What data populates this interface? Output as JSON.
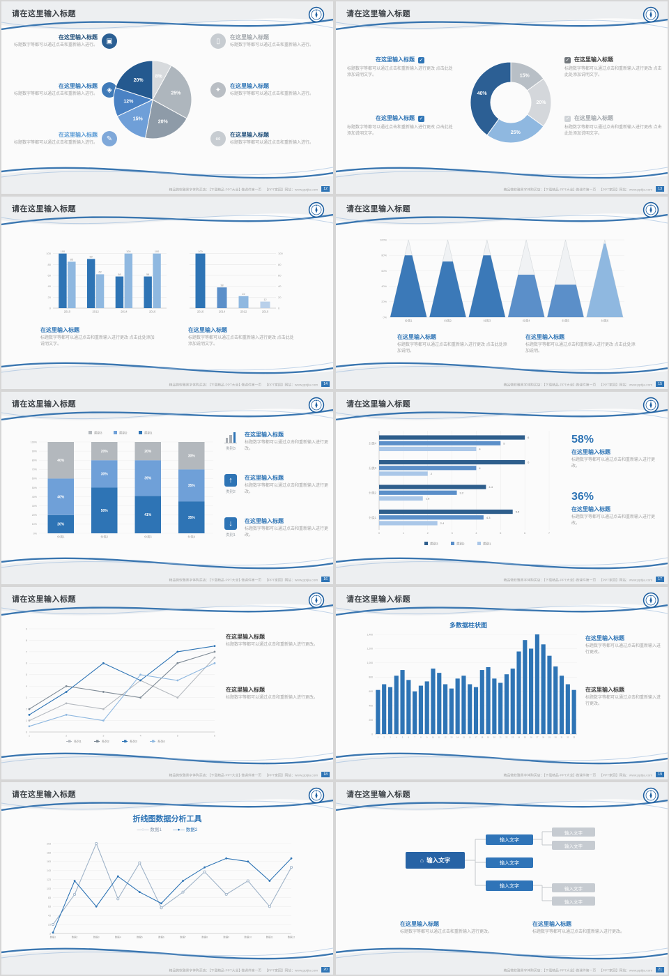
{
  "texts": {
    "title": "请在这里输入标题",
    "subtitle": "在这里输入标题",
    "body1": "标题数字等都可以通过点击和重新输入进行。",
    "body2": "标题数字等都可以通过点击和重新输入进行更改 点击此处添加说明文字。",
    "body3": "标题数字等都可以通过点击和重新输入进行更改。",
    "body4": "标题数字等都可以通过点击和重新输入进行更改 点击此处添加说明。",
    "pct58": "58%",
    "pct36": "36%",
    "node_label": "输入文字",
    "legend20a": "—○— 数据1",
    "legend20b": "—●— 数据2"
  },
  "icons": {
    "computer": "▣",
    "smartphone": "▯",
    "car": "◈",
    "lock": "✦",
    "pen": "✎",
    "bicycle": "∞",
    "check": "✓",
    "home": "⌂",
    "up": "↑",
    "down": "↓"
  },
  "slide16": {
    "icon_captions": [
      "类别3",
      "类别2",
      "类别1"
    ]
  },
  "footer": {
    "left": "精品微软雅黑字体购买店：【下载精品·PPT大全】·做课件第一页",
    "right": "【PPT家园】网站：www.pptjia.com",
    "pages": [
      "12",
      "13",
      "14",
      "15",
      "16",
      "17",
      "18",
      "19",
      "20",
      "21"
    ]
  },
  "chart_data": [
    {
      "id": "pie-s12",
      "type": "pie",
      "labels": [
        "8%",
        "25%",
        "20%",
        "15%",
        "12%",
        "20%"
      ],
      "values": [
        8,
        25,
        20,
        15,
        12,
        20
      ],
      "colors": [
        "#d7dadd",
        "#aeb6bd",
        "#8e9ba8",
        "#6f9fd8",
        "#4a82c4",
        "#24598f"
      ]
    },
    {
      "id": "donut-s13",
      "type": "donut",
      "labels": [
        "15%",
        "20%",
        "25%",
        "40%"
      ],
      "values": [
        15,
        20,
        25,
        40
      ],
      "colors": [
        "#b8bfc6",
        "#d4d7db",
        "#8fb8e0",
        "#2c5f94"
      ]
    },
    {
      "id": "bar-s14-left",
      "type": "bar",
      "categories": [
        "2010",
        "2012",
        "2014",
        "2016"
      ],
      "series": [
        {
          "name": "系列1",
          "values": [
            100,
            90,
            58,
            58
          ],
          "color": "#2e74b5"
        },
        {
          "name": "系列2",
          "values": [
            85,
            62,
            100,
            100
          ],
          "color": "#8fb8e0"
        }
      ],
      "ylim": [
        0,
        120
      ],
      "yticks": [
        0,
        20,
        40,
        60,
        80,
        100
      ],
      "axis": "left",
      "value_labels": true
    },
    {
      "id": "bar-s14-right",
      "type": "bar",
      "categories": [
        "2016",
        "2014",
        "2012",
        "2010"
      ],
      "series": [
        {
          "name": "系列1",
          "values": [
            100,
            38,
            22,
            12
          ],
          "color": "#2e74b5"
        }
      ],
      "colors_per_bar": [
        "#2e74b5",
        "#5b8fc9",
        "#8fb8e0",
        "#b9d0ea"
      ],
      "ylim": [
        0,
        120
      ],
      "yticks": [
        0,
        20,
        40,
        60,
        80,
        100
      ],
      "axis": "right",
      "value_labels": true
    },
    {
      "id": "pyramid-s15",
      "type": "pyramid",
      "categories": [
        "分类1",
        "分类2",
        "分类3",
        "分类4",
        "分类5",
        "分类6"
      ],
      "fill_percent": [
        80,
        72,
        80,
        55,
        42,
        95
      ],
      "fill_colors": [
        "#3b79b8",
        "#3b79b8",
        "#3b79b8",
        "#5b8fc9",
        "#5b8fc9",
        "#8fb8e0"
      ],
      "yticks": [
        "0%",
        "20%",
        "40%",
        "60%",
        "80%",
        "100%"
      ]
    },
    {
      "id": "stacked-s16",
      "type": "stacked",
      "categories": [
        "分类1",
        "分类2",
        "分类3",
        "分类4"
      ],
      "series": [
        {
          "name": "类别1",
          "values": [
            20,
            50,
            41,
            35
          ],
          "color": "#2e74b5"
        },
        {
          "name": "类别2",
          "values": [
            40,
            30,
            39,
            35
          ],
          "color": "#6fa0d8"
        },
        {
          "name": "类别3",
          "values": [
            40,
            20,
            20,
            30
          ],
          "color": "#b3b8bd"
        }
      ],
      "legend_order": [
        "类别3",
        "类别2",
        "类别1"
      ],
      "yticks": [
        "0%",
        "10%",
        "20%",
        "30%",
        "40%",
        "50%",
        "60%",
        "70%",
        "80%",
        "90%",
        "100%"
      ]
    },
    {
      "id": "hbar-s17",
      "type": "hbar",
      "categories": [
        "分类4",
        "分类3",
        "分类2",
        "分类1"
      ],
      "series": [
        {
          "name": "类别3",
          "values": [
            6,
            6,
            4.4,
            5.5
          ],
          "color": "#2e5e8c"
        },
        {
          "name": "类别2",
          "values": [
            5,
            4,
            3.2,
            4.3
          ],
          "color": "#5b8fc9"
        },
        {
          "name": "类别1",
          "values": [
            4,
            2,
            1.8,
            2.4
          ],
          "color": "#aac7e8"
        }
      ],
      "xlim": [
        0,
        7
      ],
      "xticks": [
        0,
        1,
        2,
        3,
        4,
        5,
        6,
        7
      ]
    },
    {
      "id": "line-s18",
      "type": "line",
      "x": [
        "1",
        "2",
        "3",
        "4",
        "5",
        "6"
      ],
      "series": [
        {
          "name": "系列1",
          "values": [
            1,
            2.5,
            2,
            4.5,
            3,
            6.5
          ],
          "color": "#b5bac0",
          "marker": "filled"
        },
        {
          "name": "系列2",
          "values": [
            2,
            4,
            3.5,
            3,
            6,
            7
          ],
          "color": "#7f8b96",
          "marker": "filled"
        },
        {
          "name": "系列3",
          "values": [
            1.5,
            3.5,
            6,
            4.5,
            7,
            7.5
          ],
          "color": "#2e74b5",
          "marker": "filled"
        },
        {
          "name": "系列4",
          "values": [
            0.5,
            1.5,
            1,
            5,
            4.5,
            6
          ],
          "color": "#8fb8e0",
          "marker": "filled"
        }
      ],
      "ylim": [
        0,
        9
      ],
      "yticks": [
        0,
        1,
        2,
        3,
        4,
        5,
        6,
        7,
        8,
        9
      ],
      "legend": "bottom"
    },
    {
      "id": "columns-s19",
      "type": "columns",
      "title": "多数据柱状图",
      "x": [
        "1",
        "2",
        "3",
        "4",
        "5",
        "6",
        "7",
        "8",
        "9",
        "10",
        "11",
        "12",
        "13",
        "14",
        "15",
        "16",
        "17",
        "18",
        "19",
        "20",
        "21",
        "22",
        "23",
        "24",
        "25",
        "26",
        "27",
        "28",
        "29",
        "30",
        "31",
        "32",
        "33"
      ],
      "values": [
        620,
        700,
        660,
        820,
        900,
        760,
        600,
        680,
        740,
        920,
        860,
        700,
        640,
        780,
        820,
        700,
        660,
        900,
        940,
        780,
        720,
        840,
        920,
        1160,
        1320,
        1200,
        1400,
        1260,
        1100,
        950,
        820,
        700,
        620
      ],
      "ylim": [
        0,
        1400
      ],
      "yticks": [
        0,
        200,
        400,
        600,
        800,
        1000,
        1200,
        1400
      ],
      "color": "#2e74b5"
    },
    {
      "id": "line-s20",
      "type": "line",
      "title": "折线图数据分析工具",
      "x": [
        "数据1",
        "数据2",
        "数据3",
        "数据4",
        "数据5",
        "数据6",
        "数据7",
        "数据8",
        "数据9",
        "数据10",
        "数据11",
        "数据12"
      ],
      "series": [
        {
          "name": "数据1",
          "values": [
            23,
            90,
            203,
            80,
            160,
            60,
            95,
            140,
            90,
            120,
            63,
            150
          ],
          "color": "#9fb3c8",
          "marker": "hollow"
        },
        {
          "name": "数据2",
          "values": [
            5,
            120,
            63,
            130,
            95,
            70,
            120,
            150,
            170,
            163,
            120,
            170
          ],
          "color": "#2e74b5",
          "marker": "filled"
        }
      ],
      "ylim": [
        3,
        203
      ],
      "yticks": [
        3,
        23,
        43,
        63,
        83,
        103,
        123,
        143,
        163,
        183,
        203
      ],
      "x_axis_labels": true
    }
  ]
}
